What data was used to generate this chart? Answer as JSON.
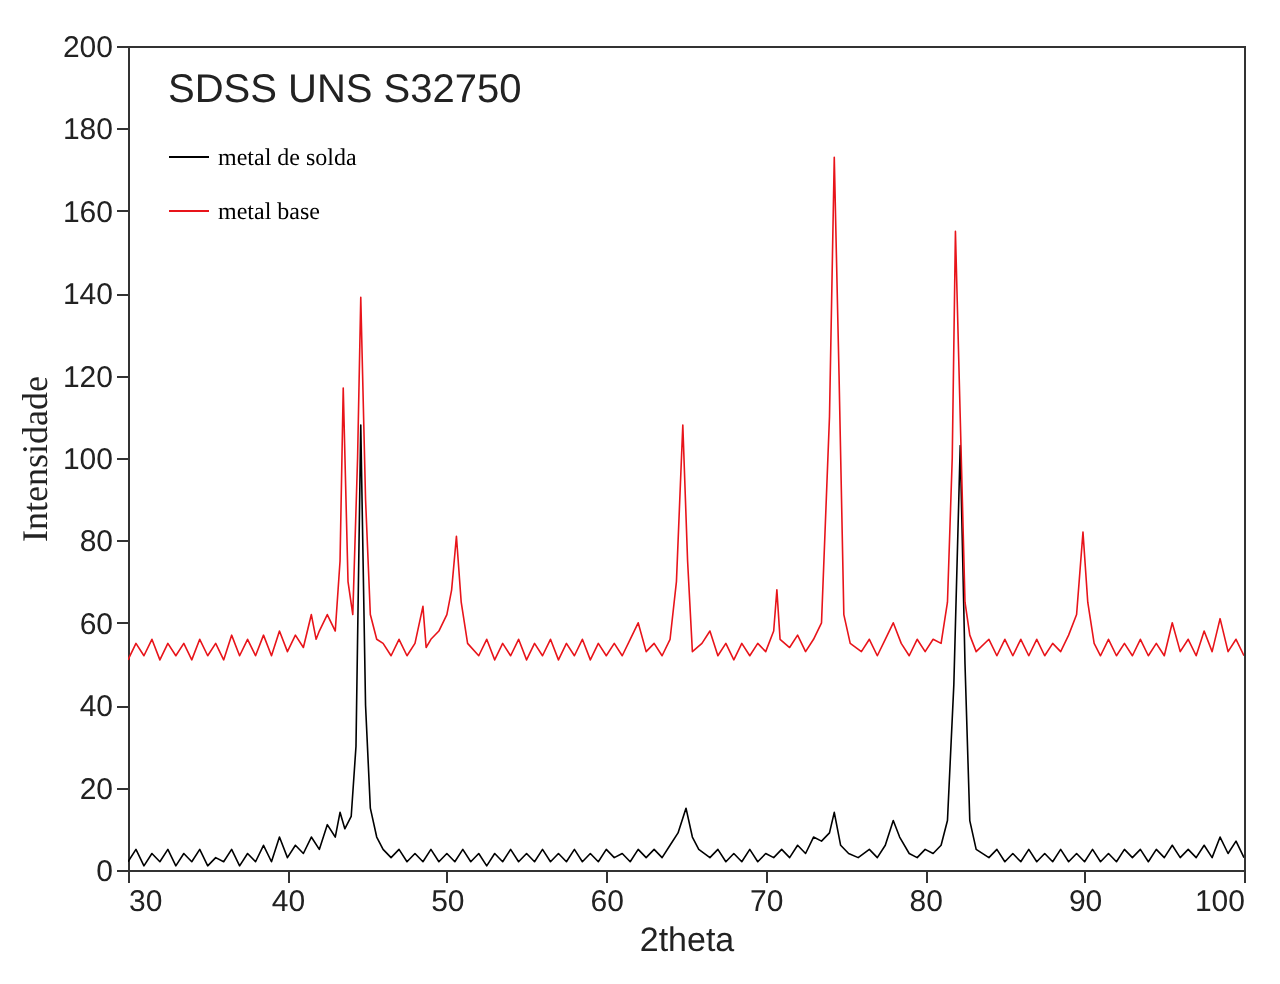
{
  "chart_data": {
    "type": "line",
    "title": "SDSS UNS S32750",
    "xlabel": "2theta",
    "ylabel": "Intensidade",
    "xlim": [
      30,
      100
    ],
    "ylim": [
      0,
      200
    ],
    "xticks": [
      30,
      40,
      50,
      60,
      70,
      80,
      90,
      100
    ],
    "yticks": [
      0,
      20,
      40,
      60,
      80,
      100,
      120,
      140,
      160,
      180,
      200
    ],
    "grid": false,
    "legend": "top left",
    "marker": "none",
    "line_style": "solid",
    "series": [
      {
        "name": "metal de solda",
        "color": "#000000",
        "x": [
          30,
          30.5,
          31,
          31.5,
          32,
          32.5,
          33,
          33.5,
          34,
          34.5,
          35,
          35.5,
          36,
          36.5,
          37,
          37.5,
          38,
          38.5,
          39,
          39.5,
          40,
          40.5,
          41,
          41.5,
          42,
          42.5,
          43,
          43.3,
          43.6,
          44,
          44.3,
          44.6,
          44.9,
          45.2,
          45.6,
          46,
          46.5,
          47,
          47.5,
          48,
          48.5,
          49,
          49.5,
          50,
          50.5,
          51,
          51.5,
          52,
          52.5,
          53,
          53.5,
          54,
          54.5,
          55,
          55.5,
          56,
          56.5,
          57,
          57.5,
          58,
          58.5,
          59,
          59.5,
          60,
          60.5,
          61,
          61.5,
          62,
          62.5,
          63,
          63.5,
          64,
          64.5,
          65,
          65.4,
          65.8,
          66.5,
          67,
          67.5,
          68,
          68.5,
          69,
          69.5,
          70,
          70.5,
          71,
          71.5,
          72,
          72.5,
          73,
          73.5,
          74,
          74.3,
          74.7,
          75.2,
          75.8,
          76.5,
          77,
          77.5,
          78,
          78.4,
          79,
          79.5,
          80,
          80.5,
          81,
          81.4,
          81.8,
          82.2,
          82.5,
          82.8,
          83.2,
          84,
          84.5,
          85,
          85.5,
          86,
          86.5,
          87,
          87.5,
          88,
          88.5,
          89,
          89.5,
          90,
          90.5,
          91,
          91.5,
          92,
          92.5,
          93,
          93.5,
          94,
          94.5,
          95,
          95.5,
          96,
          96.5,
          97,
          97.5,
          98,
          98.5,
          99,
          99.5,
          100
        ],
        "values": [
          2,
          5,
          1,
          4,
          2,
          5,
          1,
          4,
          2,
          5,
          1,
          3,
          2,
          5,
          1,
          4,
          2,
          6,
          2,
          8,
          3,
          6,
          4,
          8,
          5,
          11,
          8,
          14,
          10,
          13,
          30,
          108,
          40,
          15,
          8,
          5,
          3,
          5,
          2,
          4,
          2,
          5,
          2,
          4,
          2,
          5,
          2,
          4,
          1,
          4,
          2,
          5,
          2,
          4,
          2,
          5,
          2,
          4,
          2,
          5,
          2,
          4,
          2,
          5,
          3,
          4,
          2,
          5,
          3,
          5,
          3,
          6,
          9,
          15,
          8,
          5,
          3,
          5,
          2,
          4,
          2,
          5,
          2,
          4,
          3,
          5,
          3,
          6,
          4,
          8,
          7,
          9,
          14,
          6,
          4,
          3,
          5,
          3,
          6,
          12,
          8,
          4,
          3,
          5,
          4,
          6,
          12,
          45,
          103,
          50,
          12,
          5,
          3,
          5,
          2,
          4,
          2,
          5,
          2,
          4,
          2,
          5,
          2,
          4,
          2,
          5,
          2,
          4,
          2,
          5,
          3,
          5,
          2,
          5,
          3,
          6,
          3,
          5,
          3,
          6,
          3,
          8,
          4,
          7,
          3
        ]
      },
      {
        "name": "metal base",
        "color": "#e8141a",
        "x": [
          30,
          30.5,
          31,
          31.5,
          32,
          32.5,
          33,
          33.5,
          34,
          34.5,
          35,
          35.5,
          36,
          36.5,
          37,
          37.5,
          38,
          38.5,
          39,
          39.5,
          40,
          40.5,
          41,
          41.5,
          41.8,
          42,
          42.5,
          43,
          43.3,
          43.5,
          43.8,
          44.1,
          44.4,
          44.6,
          44.9,
          45.2,
          45.6,
          46,
          46.5,
          47,
          47.5,
          48,
          48.5,
          48.7,
          49,
          49.5,
          50,
          50.3,
          50.6,
          50.9,
          51.3,
          52,
          52.5,
          53,
          53.5,
          54,
          54.5,
          55,
          55.5,
          56,
          56.5,
          57,
          57.5,
          58,
          58.5,
          59,
          59.5,
          60,
          60.5,
          61,
          61.5,
          62,
          62.5,
          63,
          63.5,
          64,
          64.4,
          64.8,
          65.1,
          65.4,
          66,
          66.5,
          67,
          67.5,
          68,
          68.5,
          69,
          69.5,
          70,
          70.5,
          70.7,
          70.9,
          71.5,
          72,
          72.5,
          73,
          73.5,
          74,
          74.3,
          74.6,
          74.9,
          75.3,
          76,
          76.5,
          77,
          77.5,
          78,
          78.5,
          79,
          79.5,
          80,
          80.5,
          81,
          81.4,
          81.7,
          81.9,
          82.2,
          82.5,
          82.8,
          83.2,
          84,
          84.5,
          85,
          85.5,
          86,
          86.5,
          87,
          87.5,
          88,
          88.5,
          89,
          89.5,
          89.9,
          90.2,
          90.6,
          91,
          91.5,
          92,
          92.5,
          93,
          93.5,
          94,
          94.5,
          95,
          95.5,
          96,
          96.5,
          97,
          97.5,
          98,
          98.5,
          99,
          99.5,
          100
        ],
        "values": [
          51,
          55,
          52,
          56,
          51,
          55,
          52,
          55,
          51,
          56,
          52,
          55,
          51,
          57,
          52,
          56,
          52,
          57,
          52,
          58,
          53,
          57,
          54,
          62,
          56,
          58,
          62,
          58,
          75,
          117,
          70,
          62,
          100,
          139,
          90,
          62,
          56,
          55,
          52,
          56,
          52,
          55,
          64,
          54,
          56,
          58,
          62,
          68,
          81,
          65,
          55,
          52,
          56,
          51,
          55,
          52,
          56,
          51,
          55,
          52,
          56,
          51,
          55,
          52,
          56,
          51,
          55,
          52,
          55,
          52,
          56,
          60,
          53,
          55,
          52,
          56,
          70,
          108,
          75,
          53,
          55,
          58,
          52,
          55,
          51,
          55,
          52,
          55,
          53,
          58,
          68,
          56,
          54,
          57,
          53,
          56,
          60,
          110,
          173,
          120,
          62,
          55,
          53,
          56,
          52,
          56,
          60,
          55,
          52,
          56,
          53,
          56,
          55,
          65,
          100,
          155,
          110,
          65,
          57,
          53,
          56,
          52,
          56,
          52,
          56,
          52,
          56,
          52,
          55,
          53,
          57,
          62,
          82,
          65,
          55,
          52,
          56,
          52,
          55,
          52,
          56,
          52,
          55,
          52,
          60,
          53,
          56,
          52,
          58,
          53,
          61,
          53,
          56,
          52
        ]
      }
    ]
  }
}
